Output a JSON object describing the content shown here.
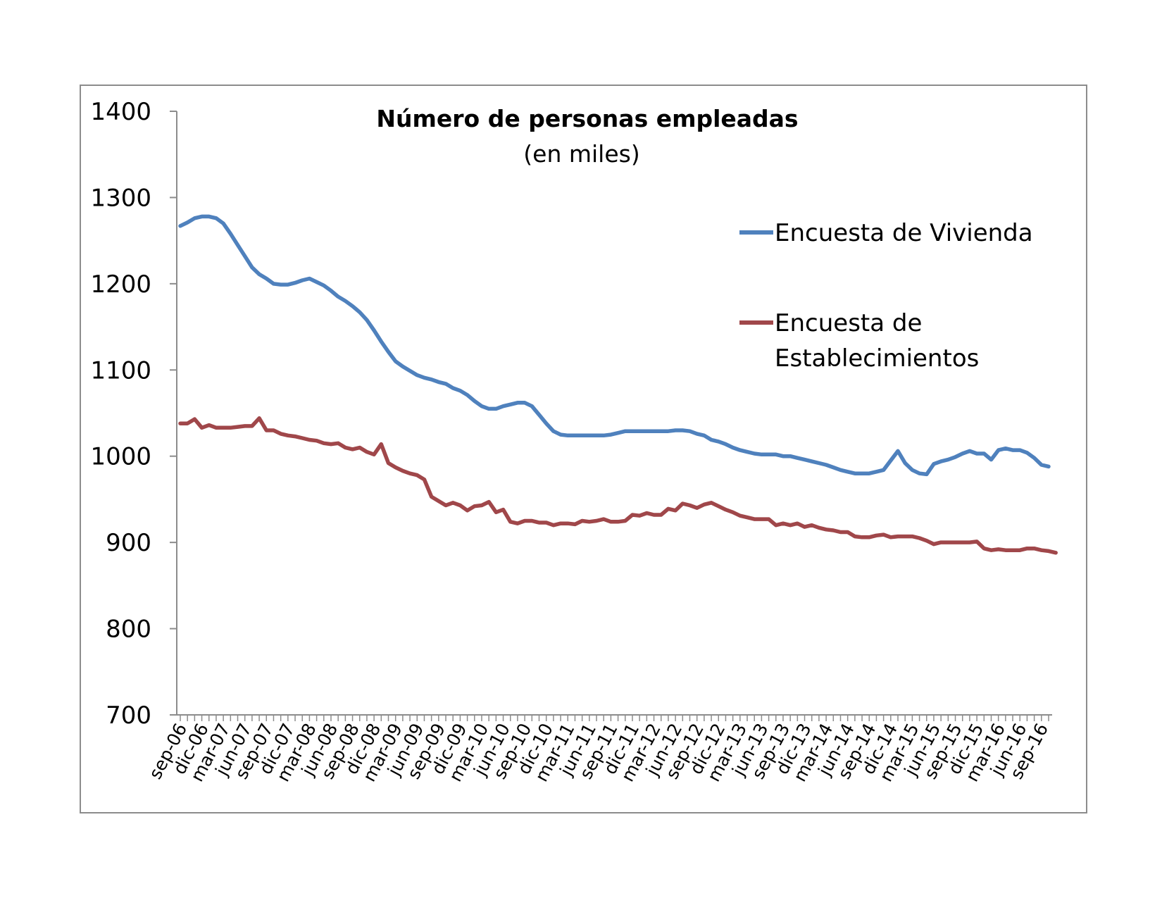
{
  "chart_data": {
    "type": "line",
    "title": "Número de personas empleadas",
    "subtitle": "(en miles)",
    "ylim": [
      700,
      1400
    ],
    "y_ticks": [
      700,
      800,
      900,
      1000,
      1100,
      1200,
      1300,
      1400
    ],
    "x_tick_labels": [
      "sep-06",
      "dic-06",
      "mar-07",
      "jun-07",
      "sep-07",
      "dic-07",
      "mar-08",
      "jun-08",
      "sep-08",
      "dic-08",
      "mar-09",
      "jun-09",
      "sep-09",
      "dic-09",
      "mar-10",
      "jun-10",
      "sep-10",
      "dic-10",
      "mar-11",
      "jun-11",
      "sep-11",
      "dic-11",
      "mar-12",
      "jun-12",
      "sep-12",
      "dic-12",
      "mar-13",
      "jun-13",
      "sep-13",
      "dic-13",
      "mar-14",
      "jun-14",
      "sep-14",
      "dic-14",
      "mar-15",
      "jun-15",
      "sep-15",
      "dic-15",
      "mar-16",
      "jun-16",
      "sep-16"
    ],
    "grid": false,
    "legend_position": "right",
    "series": [
      {
        "name": "Encuesta de Vivienda",
        "legend_lines": [
          "Encuesta de Vivienda"
        ],
        "color": "#4f81bd",
        "values": [
          1267,
          1271,
          1276,
          1278,
          1278,
          1276,
          1270,
          1258,
          1245,
          1232,
          1219,
          1211,
          1206,
          1200,
          1199,
          1199,
          1201,
          1204,
          1206,
          1202,
          1198,
          1192,
          1185,
          1180,
          1174,
          1167,
          1158,
          1146,
          1133,
          1121,
          1110,
          1104,
          1099,
          1094,
          1091,
          1089,
          1086,
          1084,
          1079,
          1076,
          1071,
          1064,
          1058,
          1055,
          1055,
          1058,
          1060,
          1062,
          1062,
          1058,
          1048,
          1038,
          1029,
          1025,
          1024,
          1024,
          1024,
          1024,
          1024,
          1024,
          1025,
          1027,
          1029,
          1029,
          1029,
          1029,
          1029,
          1029,
          1029,
          1030,
          1030,
          1029,
          1026,
          1024,
          1019,
          1017,
          1014,
          1010,
          1007,
          1005,
          1003,
          1002,
          1002,
          1002,
          1000,
          1000,
          998,
          996,
          994,
          992,
          990,
          987,
          984,
          982,
          980,
          980,
          980,
          982,
          984,
          995,
          1006,
          992,
          984,
          980,
          979,
          991,
          994,
          996,
          999,
          1003,
          1006,
          1003,
          1003,
          996,
          1007,
          1009,
          1007,
          1007,
          1004,
          998,
          990,
          988
        ]
      },
      {
        "name": "Encuesta de Establecimientos",
        "legend_lines": [
          "Encuesta de",
          "Establecimientos"
        ],
        "color": "#a0474a",
        "values": [
          1038,
          1038,
          1043,
          1033,
          1036,
          1033,
          1033,
          1033,
          1034,
          1035,
          1035,
          1044,
          1030,
          1030,
          1026,
          1024,
          1023,
          1021,
          1019,
          1018,
          1015,
          1014,
          1015,
          1010,
          1008,
          1010,
          1005,
          1002,
          1014,
          992,
          987,
          983,
          980,
          978,
          973,
          953,
          948,
          943,
          946,
          943,
          937,
          942,
          943,
          947,
          935,
          938,
          924,
          922,
          925,
          925,
          923,
          923,
          920,
          922,
          922,
          921,
          925,
          924,
          925,
          927,
          924,
          924,
          925,
          932,
          931,
          934,
          932,
          932,
          939,
          937,
          945,
          943,
          940,
          944,
          946,
          942,
          938,
          935,
          931,
          929,
          927,
          927,
          927,
          920,
          922,
          920,
          922,
          918,
          920,
          917,
          915,
          914,
          912,
          912,
          907,
          906,
          906,
          908,
          909,
          906,
          907,
          907,
          907,
          905,
          902,
          898,
          900,
          900,
          900,
          900,
          900,
          901,
          893,
          891,
          892,
          891,
          891,
          891,
          893,
          893,
          891,
          890,
          888
        ]
      }
    ]
  }
}
